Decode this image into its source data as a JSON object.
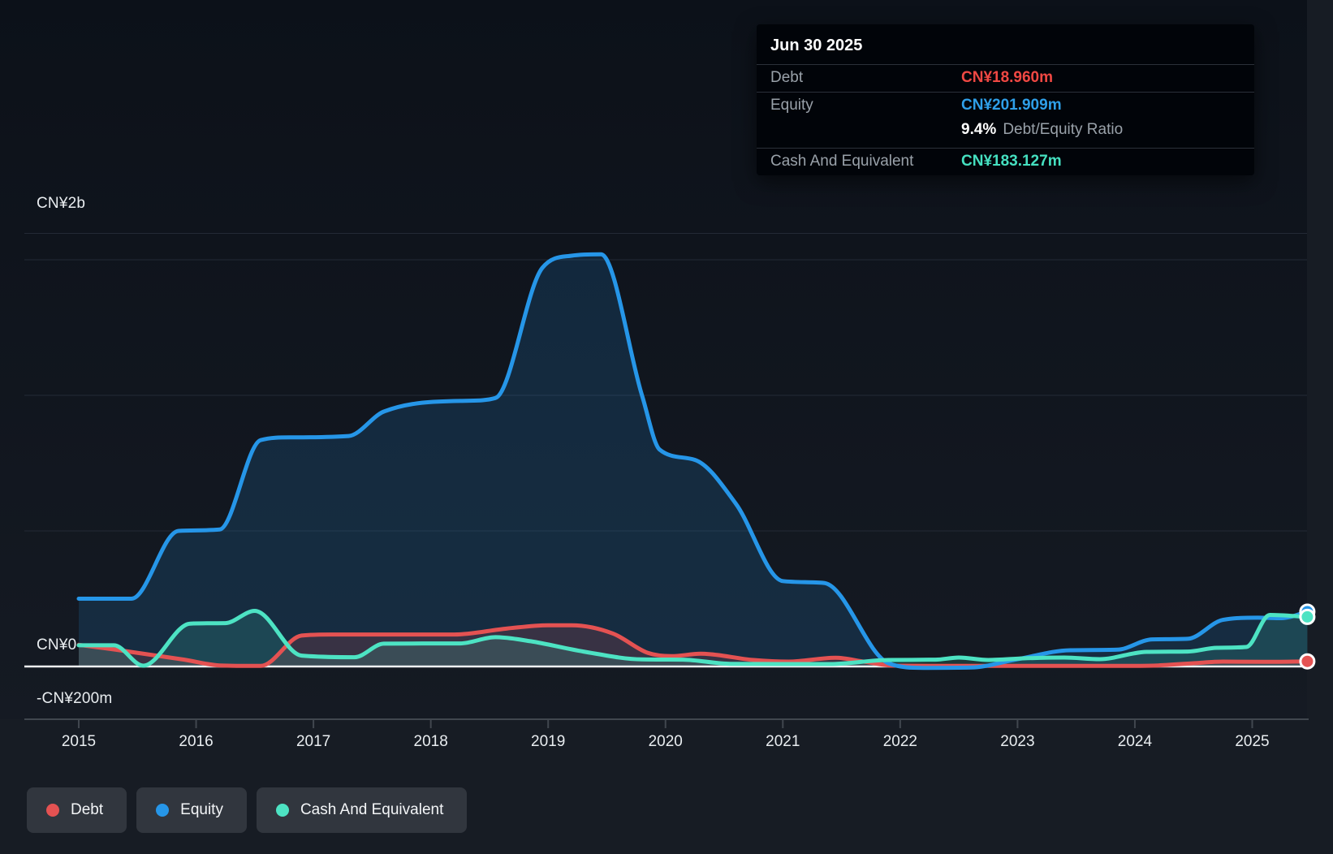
{
  "tooltip": {
    "date": "Jun 30 2025",
    "debt_label": "Debt",
    "debt_value": "CN¥18.960m",
    "debt_color": "#f04843",
    "equity_label": "Equity",
    "equity_value": "CN¥201.909m",
    "equity_color": "#2f9fe8",
    "ratio_value": "9.4%",
    "ratio_label": "Debt/Equity Ratio",
    "cash_label": "Cash And Equivalent",
    "cash_value": "CN¥183.127m",
    "cash_color": "#45e0c0"
  },
  "legend": {
    "items": [
      {
        "label": "Debt",
        "color": "#e45252"
      },
      {
        "label": "Equity",
        "color": "#2696e8"
      },
      {
        "label": "Cash And Equivalent",
        "color": "#4de3c3"
      }
    ]
  },
  "chart_data": {
    "type": "area",
    "y_unit": "CN¥ millions",
    "ylim": [
      -195,
      1600
    ],
    "x_range": [
      2015,
      2025.47
    ],
    "grid": "horizontal",
    "gridline_values": [
      500,
      1000,
      1500
    ],
    "y_tick_labels": [
      "CN¥2b",
      "CN¥0",
      "-CN¥200m"
    ],
    "x_tick_labels": [
      "2015",
      "2016",
      "2017",
      "2018",
      "2019",
      "2020",
      "2021",
      "2022",
      "2023",
      "2024",
      "2025"
    ],
    "legend_position": "bottom-left",
    "series": [
      {
        "name": "Debt",
        "color": "#e45252",
        "points": [
          [
            2015.0,
            80
          ],
          [
            2015.3,
            63
          ],
          [
            2015.9,
            25
          ],
          [
            2016.2,
            4
          ],
          [
            2016.55,
            2
          ],
          [
            2016.9,
            114
          ],
          [
            2017.15,
            118
          ],
          [
            2018.2,
            118
          ],
          [
            2018.65,
            140
          ],
          [
            2019.0,
            152
          ],
          [
            2019.2,
            152
          ],
          [
            2019.55,
            122
          ],
          [
            2019.85,
            50
          ],
          [
            2020.05,
            38
          ],
          [
            2020.3,
            47
          ],
          [
            2020.75,
            24
          ],
          [
            2021.05,
            18
          ],
          [
            2021.45,
            32
          ],
          [
            2021.7,
            17
          ],
          [
            2021.95,
            3
          ],
          [
            2022.6,
            2
          ],
          [
            2023.3,
            2
          ],
          [
            2023.9,
            2
          ],
          [
            2024.2,
            4
          ],
          [
            2024.5,
            12
          ],
          [
            2024.75,
            18
          ],
          [
            2025.1,
            17
          ],
          [
            2025.47,
            19
          ]
        ]
      },
      {
        "name": "Equity",
        "color": "#2696e8",
        "points": [
          [
            2015.0,
            250
          ],
          [
            2015.45,
            250
          ],
          [
            2015.85,
            500
          ],
          [
            2016.2,
            505
          ],
          [
            2016.55,
            835
          ],
          [
            2016.8,
            845
          ],
          [
            2017.3,
            850
          ],
          [
            2017.6,
            940
          ],
          [
            2018.3,
            980
          ],
          [
            2018.55,
            990
          ],
          [
            2018.95,
            1470
          ],
          [
            2019.2,
            1515
          ],
          [
            2019.45,
            1520
          ],
          [
            2019.8,
            1000
          ],
          [
            2019.95,
            800
          ],
          [
            2020.25,
            762
          ],
          [
            2020.6,
            600
          ],
          [
            2021.0,
            315
          ],
          [
            2021.35,
            308
          ],
          [
            2021.9,
            12
          ],
          [
            2022.2,
            -5
          ],
          [
            2022.6,
            -4
          ],
          [
            2023.0,
            27
          ],
          [
            2023.45,
            60
          ],
          [
            2023.85,
            62
          ],
          [
            2024.15,
            100
          ],
          [
            2024.45,
            102
          ],
          [
            2024.75,
            172
          ],
          [
            2025.05,
            180
          ],
          [
            2025.25,
            178
          ],
          [
            2025.47,
            202
          ]
        ]
      },
      {
        "name": "Cash And Equivalent",
        "color": "#4de3c3",
        "points": [
          [
            2015.0,
            78
          ],
          [
            2015.3,
            78
          ],
          [
            2015.55,
            3
          ],
          [
            2015.95,
            158
          ],
          [
            2016.25,
            160
          ],
          [
            2016.5,
            205
          ],
          [
            2016.9,
            40
          ],
          [
            2017.35,
            34
          ],
          [
            2017.6,
            84
          ],
          [
            2018.25,
            85
          ],
          [
            2018.55,
            108
          ],
          [
            2018.85,
            93
          ],
          [
            2019.3,
            55
          ],
          [
            2019.8,
            26
          ],
          [
            2020.15,
            25
          ],
          [
            2020.55,
            10
          ],
          [
            2021.4,
            9
          ],
          [
            2021.9,
            24
          ],
          [
            2022.3,
            25
          ],
          [
            2022.5,
            33
          ],
          [
            2022.75,
            24
          ],
          [
            2023.05,
            30
          ],
          [
            2023.4,
            33
          ],
          [
            2023.7,
            27
          ],
          [
            2024.1,
            54
          ],
          [
            2024.45,
            55
          ],
          [
            2024.7,
            69
          ],
          [
            2024.95,
            72
          ],
          [
            2025.15,
            190
          ],
          [
            2025.47,
            183
          ]
        ]
      }
    ]
  }
}
